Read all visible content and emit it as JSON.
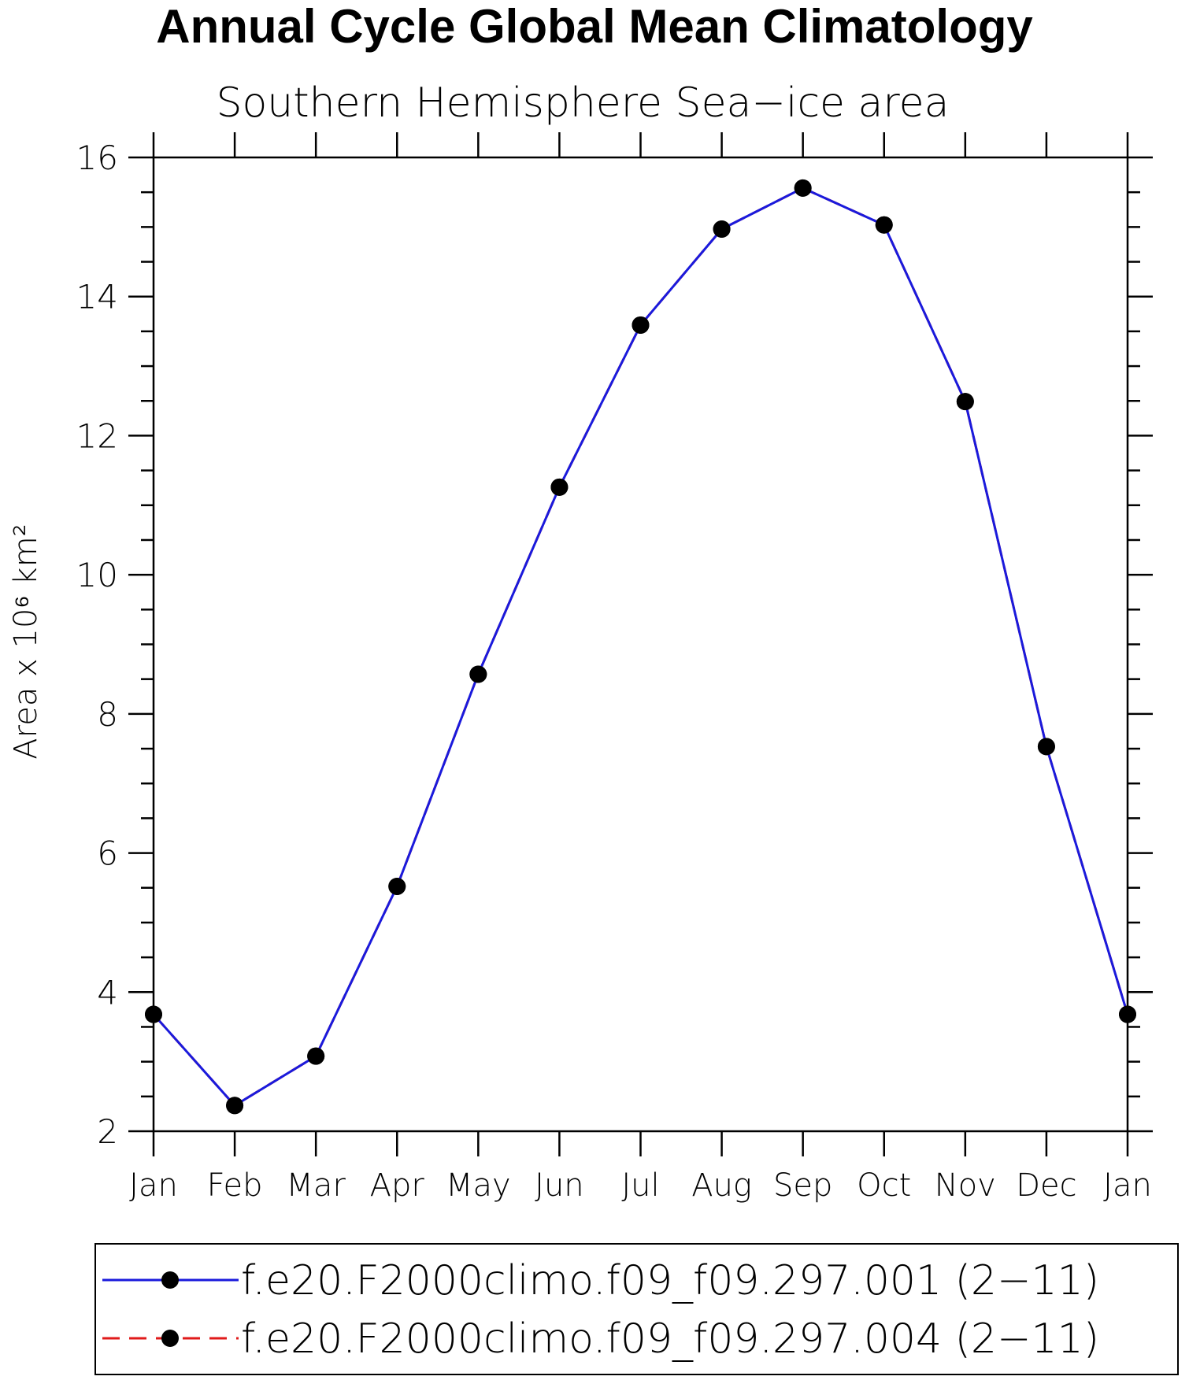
{
  "title": "Annual Cycle Global Mean Climatology",
  "subtitle": "Southern Hemisphere Sea−ice area",
  "ylabel": "Area x 10⁶ km²",
  "legend": [
    {
      "label": "f.e20.F2000climo.f09_f09.297.001 (2−11)",
      "color": "#1a1adc",
      "style": "solid"
    },
    {
      "label": "f.e20.F2000climo.f09_f09.297.004 (2−11)",
      "color": "#e01a1a",
      "style": "dashed"
    }
  ],
  "chart_data": {
    "type": "line",
    "title": "Annual Cycle Global Mean Climatology",
    "subtitle": "Southern Hemisphere Sea−ice area",
    "xlabel": "",
    "ylabel": "Area x 10⁶ km²",
    "categories": [
      "Jan",
      "Feb",
      "Mar",
      "Apr",
      "May",
      "Jun",
      "Jul",
      "Aug",
      "Sep",
      "Oct",
      "Nov",
      "Dec",
      "Jan"
    ],
    "ylim": [
      2,
      16
    ],
    "yticks": [
      2,
      4,
      6,
      8,
      10,
      12,
      14,
      16
    ],
    "series": [
      {
        "name": "f.e20.F2000climo.f09_f09.297.001 (2−11)",
        "color": "#1a1adc",
        "marker": "filled-circle",
        "values": [
          3.68,
          2.37,
          3.08,
          5.52,
          8.57,
          11.26,
          13.59,
          14.97,
          15.56,
          15.03,
          12.49,
          7.53,
          3.68
        ]
      },
      {
        "name": "f.e20.F2000climo.f09_f09.297.004 (2−11)",
        "color": "#e01a1a",
        "marker": "filled-circle",
        "values": [
          3.68,
          2.37,
          3.08,
          5.52,
          8.57,
          11.26,
          13.59,
          14.97,
          15.56,
          15.03,
          12.49,
          7.53,
          3.68
        ]
      }
    ],
    "grid": false,
    "legend_position": "bottom"
  }
}
